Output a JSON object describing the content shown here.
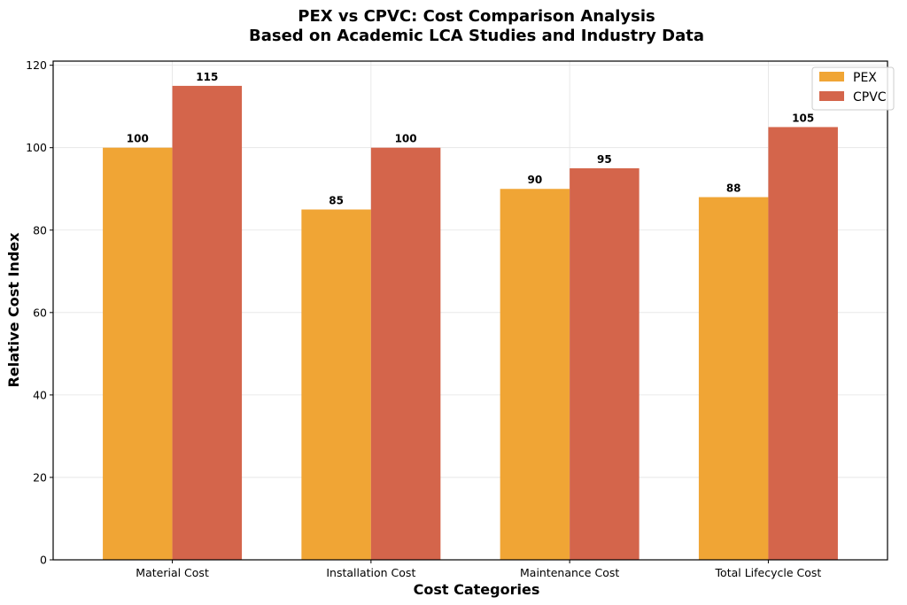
{
  "chart_data": {
    "type": "bar",
    "title": "PEX vs CPVC: Cost Comparison Analysis",
    "subtitle": "Based on Academic LCA Studies and Industry Data",
    "xlabel": "Cost Categories",
    "ylabel": "Relative Cost Index",
    "categories": [
      "Material Cost",
      "Installation Cost",
      "Maintenance Cost",
      "Total Lifecycle Cost"
    ],
    "series": [
      {
        "name": "PEX",
        "values": [
          100,
          85,
          90,
          88
        ],
        "color": "#F0A535"
      },
      {
        "name": "CPVC",
        "values": [
          115,
          100,
          95,
          105
        ],
        "color": "#D4654B"
      }
    ],
    "ylim": [
      0,
      121
    ],
    "yticks": [
      0,
      20,
      40,
      60,
      80,
      100,
      120
    ],
    "grid": true,
    "legend_position": "top-right"
  }
}
